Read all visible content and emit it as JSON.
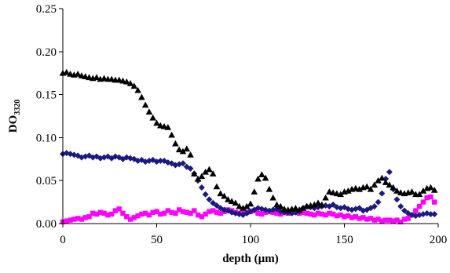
{
  "chart_data": {
    "type": "scatter",
    "title": "",
    "xlabel": "depth (µm)",
    "ylabel_main": "DO",
    "ylabel_sub": "3320",
    "xlim": [
      0,
      200
    ],
    "ylim": [
      0,
      0.25
    ],
    "x_ticks": [
      0,
      50,
      100,
      150,
      200
    ],
    "x_tick_labels": [
      "0",
      "50",
      "100",
      "150",
      "200"
    ],
    "y_ticks": [
      0,
      0.05,
      0.1,
      0.15,
      0.2,
      0.25
    ],
    "y_tick_labels": [
      "0.00",
      "0.05",
      "0.10",
      "0.15",
      "0.20",
      "0.25"
    ],
    "grid": false,
    "legend": "none",
    "series": [
      {
        "marker": "triangle",
        "color": "#000000",
        "x": [
          0,
          2,
          4,
          6,
          8,
          10,
          12,
          14,
          16,
          18,
          20,
          22,
          24,
          26,
          28,
          30,
          32,
          34,
          36,
          38,
          40,
          42,
          44,
          46,
          48,
          50,
          52,
          54,
          56,
          58,
          60,
          62,
          64,
          66,
          68,
          70,
          72,
          74,
          76,
          78,
          80,
          82,
          84,
          86,
          88,
          90,
          92,
          94,
          96,
          98,
          100,
          102,
          104,
          106,
          108,
          110,
          112,
          114,
          116,
          118,
          120,
          122,
          124,
          126,
          128,
          130,
          132,
          134,
          136,
          138,
          140,
          142,
          144,
          146,
          148,
          150,
          152,
          154,
          156,
          158,
          160,
          162,
          164,
          166,
          168,
          170,
          172,
          174,
          176,
          178,
          180,
          182,
          184,
          186,
          188,
          190,
          192,
          194,
          196,
          198
        ],
        "y": [
          0.175,
          0.176,
          0.174,
          0.173,
          0.174,
          0.172,
          0.171,
          0.17,
          0.169,
          0.17,
          0.168,
          0.169,
          0.168,
          0.168,
          0.167,
          0.167,
          0.166,
          0.165,
          0.163,
          0.16,
          0.155,
          0.147,
          0.138,
          0.13,
          0.123,
          0.117,
          0.114,
          0.113,
          0.112,
          0.103,
          0.093,
          0.086,
          0.084,
          0.087,
          0.08,
          0.058,
          0.052,
          0.055,
          0.06,
          0.063,
          0.058,
          0.043,
          0.035,
          0.032,
          0.028,
          0.026,
          0.024,
          0.02,
          0.018,
          0.02,
          0.023,
          0.037,
          0.052,
          0.057,
          0.053,
          0.04,
          0.03,
          0.022,
          0.02,
          0.017,
          0.016,
          0.017,
          0.018,
          0.016,
          0.018,
          0.02,
          0.021,
          0.022,
          0.024,
          0.022,
          0.03,
          0.037,
          0.036,
          0.035,
          0.034,
          0.037,
          0.038,
          0.04,
          0.041,
          0.04,
          0.042,
          0.043,
          0.04,
          0.045,
          0.05,
          0.053,
          0.048,
          0.045,
          0.042,
          0.038,
          0.036,
          0.035,
          0.036,
          0.037,
          0.034,
          0.034,
          0.038,
          0.041,
          0.042,
          0.039
        ]
      },
      {
        "marker": "diamond",
        "color": "#1a1a80",
        "x": [
          0,
          2,
          4,
          6,
          8,
          10,
          12,
          14,
          16,
          18,
          20,
          22,
          24,
          26,
          28,
          30,
          32,
          34,
          36,
          38,
          40,
          42,
          44,
          46,
          48,
          50,
          52,
          54,
          56,
          58,
          60,
          62,
          64,
          66,
          68,
          70,
          72,
          74,
          76,
          78,
          80,
          82,
          84,
          86,
          88,
          90,
          92,
          94,
          96,
          98,
          100,
          102,
          104,
          106,
          108,
          110,
          112,
          114,
          116,
          118,
          120,
          122,
          124,
          126,
          128,
          130,
          132,
          134,
          136,
          138,
          140,
          142,
          144,
          146,
          148,
          150,
          152,
          154,
          156,
          158,
          160,
          162,
          164,
          166,
          168,
          170,
          172,
          174,
          176,
          178,
          180,
          182,
          184,
          186,
          188,
          190,
          192,
          194,
          196,
          198
        ],
        "y": [
          0.081,
          0.082,
          0.081,
          0.08,
          0.079,
          0.077,
          0.078,
          0.079,
          0.077,
          0.078,
          0.076,
          0.077,
          0.078,
          0.076,
          0.078,
          0.077,
          0.075,
          0.077,
          0.076,
          0.075,
          0.073,
          0.074,
          0.072,
          0.073,
          0.074,
          0.072,
          0.073,
          0.073,
          0.071,
          0.07,
          0.068,
          0.069,
          0.07,
          0.066,
          0.064,
          0.058,
          0.05,
          0.042,
          0.034,
          0.028,
          0.024,
          0.021,
          0.018,
          0.016,
          0.015,
          0.013,
          0.012,
          0.011,
          0.01,
          0.012,
          0.014,
          0.016,
          0.018,
          0.017,
          0.016,
          0.015,
          0.016,
          0.017,
          0.014,
          0.013,
          0.013,
          0.012,
          0.013,
          0.014,
          0.018,
          0.02,
          0.019,
          0.018,
          0.019,
          0.02,
          0.021,
          0.02,
          0.022,
          0.019,
          0.018,
          0.019,
          0.017,
          0.016,
          0.017,
          0.018,
          0.015,
          0.016,
          0.018,
          0.02,
          0.025,
          0.035,
          0.052,
          0.06,
          0.04,
          0.028,
          0.02,
          0.015,
          0.012,
          0.01,
          0.009,
          0.01,
          0.011,
          0.012,
          0.011,
          0.011
        ]
      },
      {
        "marker": "square",
        "color": "#ff00ff",
        "x": [
          0,
          2,
          4,
          6,
          8,
          10,
          12,
          14,
          16,
          18,
          20,
          22,
          24,
          26,
          28,
          30,
          32,
          34,
          36,
          38,
          40,
          42,
          44,
          46,
          48,
          50,
          52,
          54,
          56,
          58,
          60,
          62,
          64,
          66,
          68,
          70,
          72,
          74,
          76,
          78,
          80,
          82,
          84,
          86,
          88,
          90,
          92,
          94,
          96,
          98,
          100,
          102,
          104,
          106,
          108,
          110,
          112,
          114,
          116,
          118,
          120,
          122,
          124,
          126,
          128,
          130,
          132,
          134,
          136,
          138,
          140,
          142,
          144,
          146,
          148,
          150,
          152,
          154,
          156,
          158,
          160,
          162,
          164,
          166,
          168,
          170,
          172,
          174,
          176,
          178,
          180,
          182,
          184,
          186,
          188,
          190,
          192,
          194,
          196,
          198
        ],
        "y": [
          0.002,
          0.003,
          0.004,
          0.005,
          0.006,
          0.005,
          0.007,
          0.008,
          0.012,
          0.011,
          0.013,
          0.012,
          0.01,
          0.011,
          0.015,
          0.017,
          0.012,
          0.008,
          0.005,
          0.007,
          0.009,
          0.011,
          0.012,
          0.01,
          0.013,
          0.014,
          0.011,
          0.012,
          0.015,
          0.013,
          0.012,
          0.016,
          0.014,
          0.013,
          0.012,
          0.015,
          0.01,
          0.008,
          0.011,
          0.014,
          0.015,
          0.013,
          0.012,
          0.014,
          0.016,
          0.015,
          0.013,
          0.012,
          0.014,
          0.013,
          0.014,
          0.015,
          0.012,
          0.011,
          0.013,
          0.014,
          0.013,
          0.012,
          0.011,
          0.013,
          0.012,
          0.014,
          0.013,
          0.012,
          0.013,
          0.012,
          0.011,
          0.01,
          0.012,
          0.011,
          0.01,
          0.012,
          0.011,
          0.009,
          0.01,
          0.008,
          0.009,
          0.007,
          0.008,
          0.006,
          0.007,
          0.005,
          0.006,
          0.004,
          0.005,
          0.003,
          0.004,
          0.004,
          0.003,
          0.004,
          0.002,
          0.005,
          0.006,
          0.01,
          0.015,
          0.02,
          0.025,
          0.03,
          0.031,
          0.025
        ]
      }
    ]
  }
}
